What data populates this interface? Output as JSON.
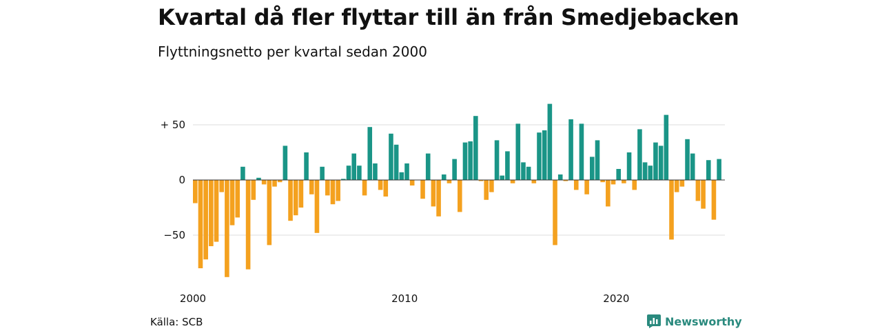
{
  "title": "Kvartal då fler flyttar till än från Smedjebacken",
  "subtitle": "Flyttningsnetto per kvartal sedan 2000",
  "source": "Källa: SCB",
  "brand": {
    "name": "Newsworthy",
    "logo_icon": "newsworthy-logo-icon"
  },
  "colors": {
    "positive": "#1a9587",
    "negative": "#f4a11f",
    "grid": "#dddddd",
    "zero_line": "#333333"
  },
  "chart_data": {
    "type": "bar",
    "x_start": "2000 Q1",
    "x_ticks": [
      "2000",
      "2010",
      "2020"
    ],
    "y_ticks": [
      "+ 50",
      "0",
      "−50"
    ],
    "y_tick_values": [
      50,
      0,
      -50
    ],
    "ylim": [
      -90,
      70
    ],
    "grid": true,
    "values": [
      -21,
      -80,
      -72,
      -60,
      -56,
      -11,
      -88,
      -41,
      -34,
      12,
      -81,
      -18,
      2,
      -4,
      -59,
      -6,
      -2,
      31,
      -37,
      -32,
      -25,
      25,
      -13,
      -48,
      12,
      -14,
      -22,
      -19,
      1,
      13,
      24,
      13,
      -14,
      48,
      15,
      -9,
      -15,
      42,
      32,
      7,
      15,
      -5,
      0,
      -17,
      24,
      -24,
      -33,
      5,
      -3,
      19,
      -29,
      34,
      35,
      58,
      -1,
      -18,
      -11,
      36,
      4,
      26,
      -3,
      51,
      16,
      12,
      -3,
      43,
      45,
      69,
      -59,
      5,
      -1,
      55,
      -9,
      51,
      -13,
      21,
      36,
      -2,
      -24,
      -4,
      10,
      -3,
      25,
      -9,
      46,
      16,
      13,
      34,
      31,
      59,
      -54,
      -11,
      -6,
      37,
      24,
      -19,
      -26,
      18,
      -36,
      19
    ]
  }
}
